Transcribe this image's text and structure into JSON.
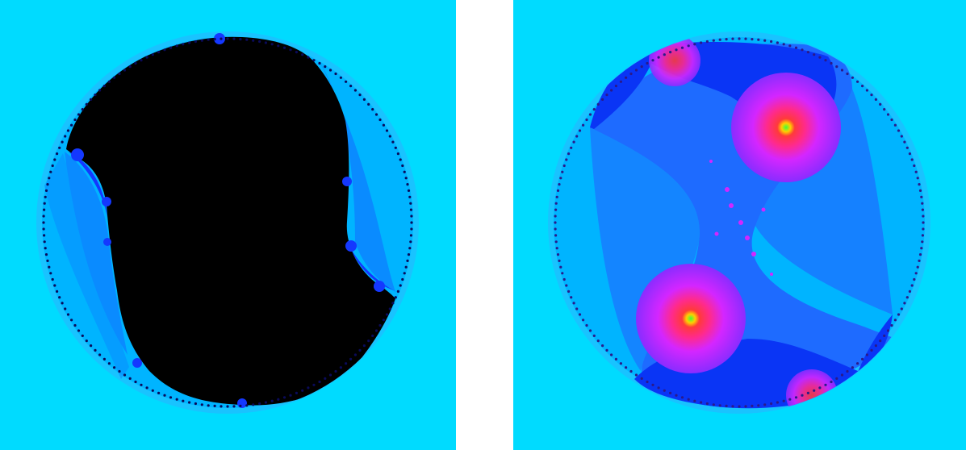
{
  "figure": {
    "panels": [
      {
        "id": "left",
        "description_name": "fractal-disc-black-interior",
        "colors": {
          "background": "#00dbff",
          "disc_rim": "#19c3ff",
          "disc_fill": "#00b4ff",
          "lobe_fill": "#0a8bff",
          "lobe_deep": "#1438ff",
          "interior": "#000000",
          "edge_dots": "#0a0a5a"
        }
      },
      {
        "id": "right",
        "description_name": "fractal-disc-colored-interior",
        "colors": {
          "background": "#00dbff",
          "disc_rim": "#19c3ff",
          "disc_fill": "#00b4ff",
          "band_fill": "#1e6bff",
          "deep_fill": "#0a35f5",
          "basin_outer": "#8a2cff",
          "basin_mid": "#d426ff",
          "basin_inner": "#ff2a8c",
          "basin_core": "#ff3a3a",
          "center_ring": "#ffd000",
          "center": "#3cff3c",
          "edge_dots": "#2a1a8a"
        }
      }
    ]
  }
}
